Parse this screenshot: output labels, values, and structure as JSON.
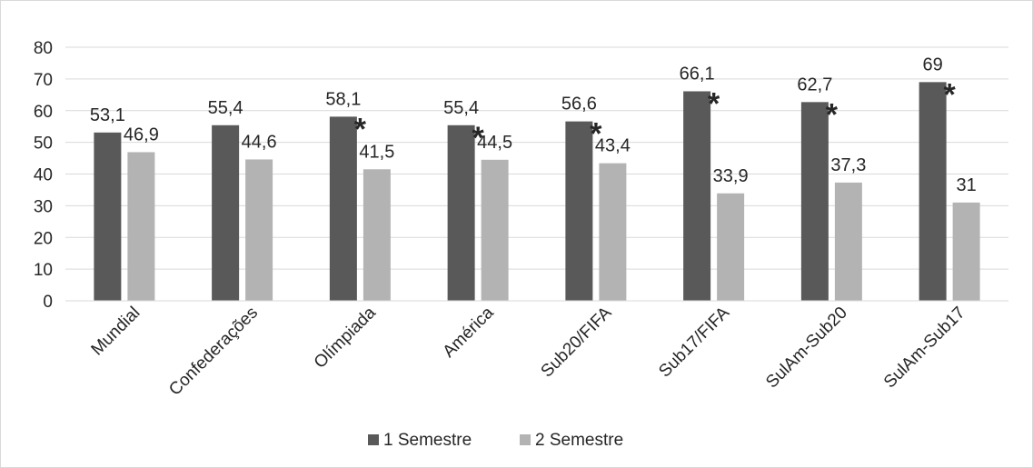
{
  "chart_data": {
    "type": "bar",
    "categories": [
      "Mundial",
      "Confederações",
      "Olímpiada",
      "América",
      "Sub20/FIFA",
      "Sub17/FIFA",
      "SulAm-Sub20",
      "SulAm-Sub17"
    ],
    "series": [
      {
        "name": "1 Semestre",
        "color": "#595959",
        "values": [
          53.1,
          55.4,
          58.1,
          55.4,
          56.6,
          66.1,
          62.7,
          69
        ]
      },
      {
        "name": "2 Semestre",
        "color": "#b3b3b3",
        "values": [
          46.9,
          44.6,
          41.5,
          44.5,
          43.4,
          33.9,
          37.3,
          31
        ]
      }
    ],
    "value_labels": {
      "1 Semestre": [
        "53,1",
        "55,4",
        "58,1",
        "55,4",
        "56,6",
        "66,1",
        "62,7",
        "69"
      ],
      "2 Semestre": [
        "46,9",
        "44,6",
        "41,5",
        "44,5",
        "43,4",
        "33,9",
        "37,3",
        "31"
      ]
    },
    "significance_marker": "*",
    "significant_categories": [
      "Olímpiada",
      "América",
      "Sub20/FIFA",
      "Sub17/FIFA",
      "SulAm-Sub20",
      "SulAm-Sub17"
    ],
    "ylim": [
      0,
      80
    ],
    "yticks": [
      0,
      10,
      20,
      30,
      40,
      50,
      60,
      70,
      80
    ],
    "grid": true,
    "legend_position": "bottom",
    "title": "",
    "xlabel": "",
    "ylabel": ""
  }
}
